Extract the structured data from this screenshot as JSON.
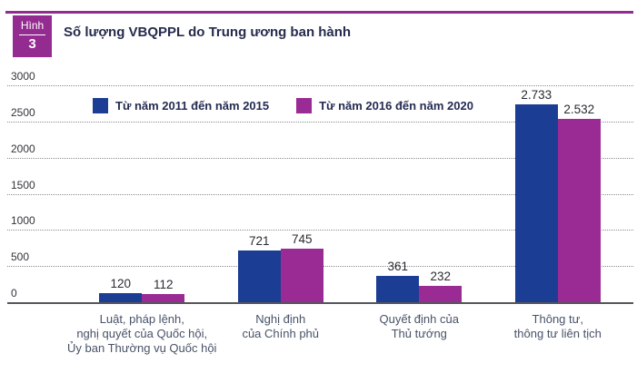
{
  "figure_badge": {
    "label": "Hình",
    "number": "3"
  },
  "title": "Số lượng VBQPPL do Trung ương ban hành",
  "colors": {
    "brand_purple": "#942B90",
    "series_blue": "#1B3D94",
    "series_purple": "#9A2B94",
    "grid_line": "#8C8C8C",
    "axis_line": "#55565A",
    "title_text": "#262B4D",
    "value_text": "#2A2B33",
    "category_text": "#485268"
  },
  "chart_data": {
    "type": "bar",
    "title": "Số lượng VBQPPL do Trung ương ban hành",
    "categories": [
      "Luật, pháp lệnh, nghị quyết của Quốc hội, Ủy ban Thường vụ Quốc hội",
      "Nghị định của Chính phủ",
      "Quyết định của Thủ tướng",
      "Thông tư, thông tư liên tịch"
    ],
    "category_display_lines": [
      [
        "Luật, pháp lệnh,",
        "nghị quyết của Quốc hội,",
        "Ủy ban Thường vụ Quốc hội"
      ],
      [
        "Nghị định",
        "của Chính phủ"
      ],
      [
        "Quyết định của",
        "Thủ tướng"
      ],
      [
        "Thông tư,",
        "thông tư liên tịch"
      ]
    ],
    "series": [
      {
        "name": "Từ năm 2011 đến năm 2015",
        "color": "#1B3D94",
        "values": [
          120,
          721,
          361,
          2733
        ],
        "value_labels": [
          "120",
          "721",
          "361",
          "2.733"
        ]
      },
      {
        "name": "Từ năm 2016 đến năm 2020",
        "color": "#9A2B94",
        "values": [
          112,
          745,
          232,
          2532
        ],
        "value_labels": [
          "112",
          "745",
          "232",
          "2.532"
        ]
      }
    ],
    "xlabel": "",
    "ylabel": "",
    "ylim": [
      0,
      3000
    ],
    "yticks": [
      0,
      500,
      1000,
      1500,
      2000,
      2500,
      3000
    ],
    "grid": "horizontal dotted",
    "legend_position": "top-left inside plot area"
  }
}
